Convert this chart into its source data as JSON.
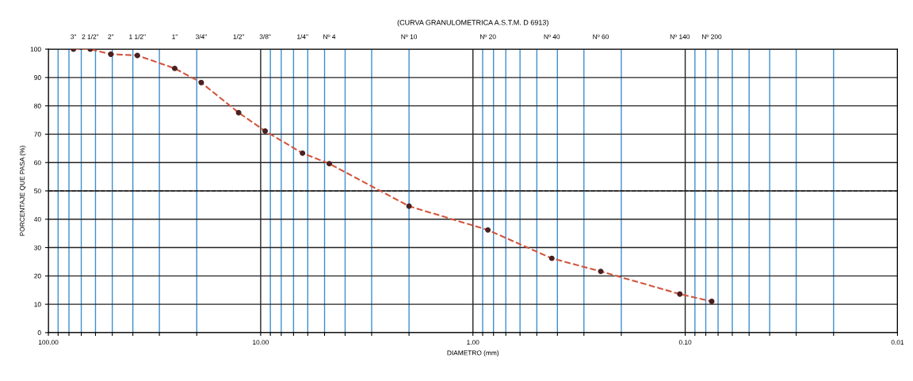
{
  "chart_data": {
    "type": "line",
    "title": "(CURVA GRANULOMETRICA A.S.T.M. D 6913)",
    "xlabel": "DIAMETRO (mm)",
    "ylabel": "PORCENTAJE QUE PASA (%)",
    "x": [
      76.2,
      63.5,
      50.8,
      38.1,
      25.4,
      19.05,
      12.7,
      9.525,
      6.35,
      4.75,
      2.0,
      0.85,
      0.425,
      0.25,
      0.106,
      0.075
    ],
    "series": [
      {
        "color": "#d2553c",
        "values": [
          100,
          100,
          98.2,
          97.8,
          93.2,
          88.2,
          77.6,
          71.1,
          63.3,
          59.6,
          44.6,
          36.2,
          26.2,
          21.6,
          13.6,
          11.0
        ]
      }
    ],
    "log": "x",
    "xlim": [
      100,
      0.01
    ],
    "xticks": [
      {
        "value": 100,
        "label": "100.00"
      },
      {
        "value": 90,
        "label": null
      },
      {
        "value": 80,
        "label": null
      },
      {
        "value": 70,
        "label": null
      },
      {
        "value": 60,
        "label": null
      },
      {
        "value": 50,
        "label": null
      },
      {
        "value": 40,
        "label": null
      },
      {
        "value": 30,
        "label": null
      },
      {
        "value": 20,
        "label": null
      },
      {
        "value": 10,
        "label": "10.00"
      },
      {
        "value": 9,
        "label": null
      },
      {
        "value": 8,
        "label": null
      },
      {
        "value": 7,
        "label": null
      },
      {
        "value": 6,
        "label": null
      },
      {
        "value": 5,
        "label": null
      },
      {
        "value": 4,
        "label": null
      },
      {
        "value": 3,
        "label": null
      },
      {
        "value": 2,
        "label": null
      },
      {
        "value": 1,
        "label": "1.00"
      },
      {
        "value": 0.9,
        "label": null
      },
      {
        "value": 0.8,
        "label": null
      },
      {
        "value": 0.7,
        "label": null
      },
      {
        "value": 0.6,
        "label": null
      },
      {
        "value": 0.5,
        "label": null
      },
      {
        "value": 0.4,
        "label": null
      },
      {
        "value": 0.3,
        "label": null
      },
      {
        "value": 0.2,
        "label": null
      },
      {
        "value": 0.1,
        "label": "0.10"
      },
      {
        "value": 0.09,
        "label": null
      },
      {
        "value": 0.08,
        "label": null
      },
      {
        "value": 0.07,
        "label": null
      },
      {
        "value": 0.06,
        "label": null
      },
      {
        "value": 0.05,
        "label": null
      },
      {
        "value": 0.04,
        "label": null
      },
      {
        "value": 0.03,
        "label": null
      },
      {
        "value": 0.02,
        "label": null
      },
      {
        "value": 0.01,
        "label": "0.01"
      }
    ],
    "ylim": [
      0,
      100
    ],
    "yticks": [
      0,
      10,
      20,
      30,
      40,
      50,
      60,
      70,
      80,
      90,
      100
    ],
    "grid": true,
    "ref_lines": [
      {
        "axis": "y",
        "value": 50,
        "color": "#222222",
        "line_style": "dashed"
      }
    ],
    "annotations": [
      "3\"",
      "2 1/2\"",
      "2\"",
      "1 1/2\"",
      "1\"",
      "3/4\"",
      "1/2\"",
      "3/8\"",
      "1/4\"",
      "Nº 4",
      "Nº 10",
      "Nº 20",
      "Nº 40",
      "Nº 60",
      "Nº 140",
      "Nº 200"
    ],
    "marker": "circle",
    "line_style": "dashed"
  }
}
